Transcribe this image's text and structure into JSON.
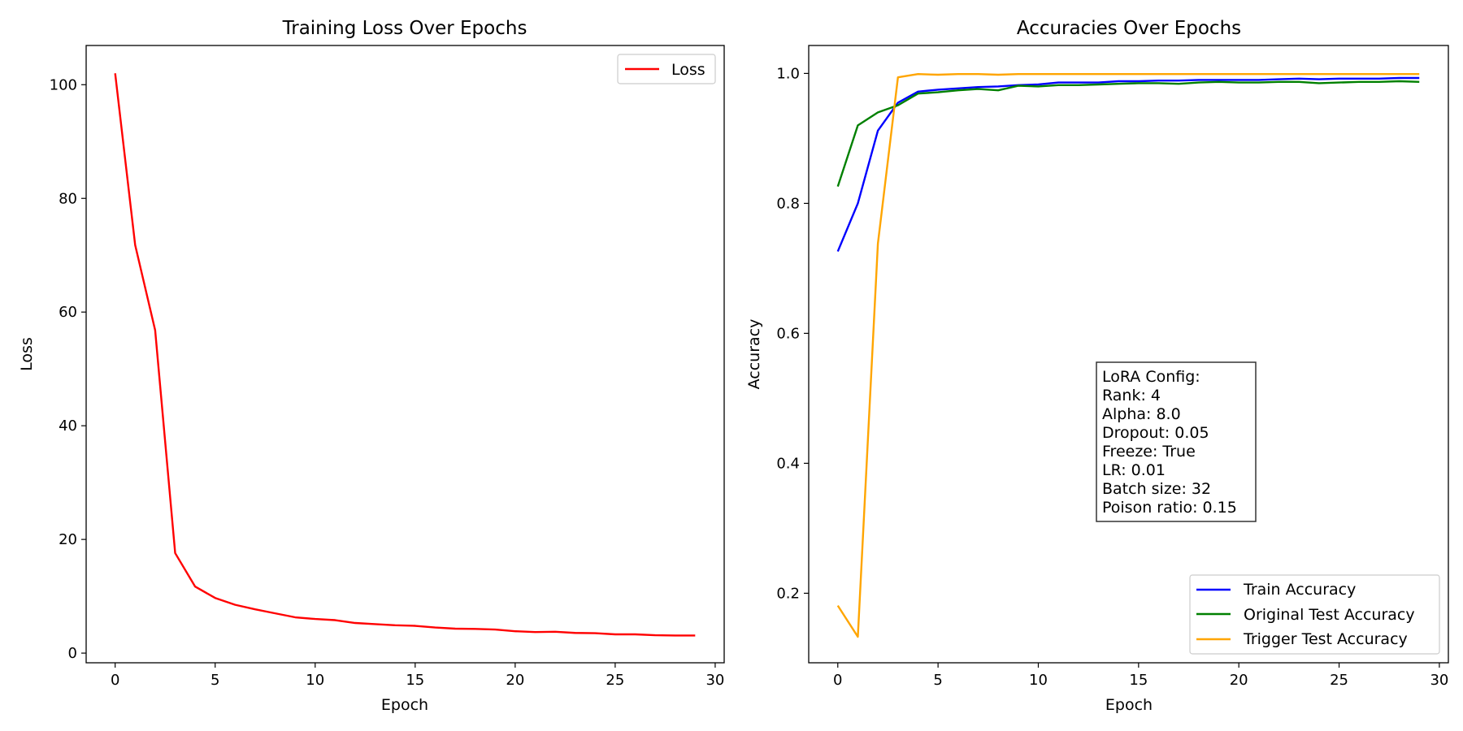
{
  "chart_data": [
    {
      "type": "line",
      "title": "Training Loss Over Epochs",
      "xlabel": "Epoch",
      "ylabel": "Loss",
      "xlim": [
        -1.45,
        30.45
      ],
      "ylim": [
        -1.7,
        106.9
      ],
      "xticks": [
        0,
        5,
        10,
        15,
        20,
        25,
        30
      ],
      "yticks": [
        0,
        20,
        40,
        60,
        80,
        100
      ],
      "grid": false,
      "legend": {
        "position": "upper right"
      },
      "x": [
        0,
        1,
        2,
        3,
        4,
        5,
        6,
        7,
        8,
        9,
        10,
        11,
        12,
        13,
        14,
        15,
        16,
        17,
        18,
        19,
        20,
        21,
        22,
        23,
        24,
        25,
        26,
        27,
        28,
        29
      ],
      "series": [
        {
          "name": "Loss",
          "color": "#ff0000",
          "values": [
            102.0,
            71.8,
            56.8,
            17.6,
            11.7,
            9.7,
            8.5,
            7.7,
            7.0,
            6.3,
            6.0,
            5.8,
            5.3,
            5.1,
            4.9,
            4.8,
            4.5,
            4.3,
            4.25,
            4.15,
            3.85,
            3.7,
            3.75,
            3.55,
            3.5,
            3.3,
            3.3,
            3.15,
            3.1,
            3.1
          ]
        }
      ]
    },
    {
      "type": "line",
      "title": "Accuracies Over Epochs",
      "xlabel": "Epoch",
      "ylabel": "Accuracy",
      "xlim": [
        -1.45,
        30.45
      ],
      "ylim": [
        0.093,
        1.043
      ],
      "xticks": [
        0,
        5,
        10,
        15,
        20,
        25,
        30
      ],
      "yticks": [
        0.2,
        0.4,
        0.6,
        0.8,
        1.0
      ],
      "ytick_labels": [
        "0.2",
        "0.4",
        "0.6",
        "0.8",
        "1.0"
      ],
      "grid": false,
      "legend": {
        "position": "lower right"
      },
      "x": [
        0,
        1,
        2,
        3,
        4,
        5,
        6,
        7,
        8,
        9,
        10,
        11,
        12,
        13,
        14,
        15,
        16,
        17,
        18,
        19,
        20,
        21,
        22,
        23,
        24,
        25,
        26,
        27,
        28,
        29
      ],
      "series": [
        {
          "name": "Train Accuracy",
          "color": "#0000ff",
          "values": [
            0.726,
            0.8,
            0.912,
            0.955,
            0.972,
            0.975,
            0.977,
            0.979,
            0.98,
            0.982,
            0.983,
            0.986,
            0.986,
            0.986,
            0.988,
            0.988,
            0.989,
            0.989,
            0.99,
            0.99,
            0.99,
            0.99,
            0.991,
            0.992,
            0.991,
            0.992,
            0.992,
            0.992,
            0.993,
            0.993
          ]
        },
        {
          "name": "Original Test Accuracy",
          "color": "#008000",
          "values": [
            0.826,
            0.92,
            0.94,
            0.951,
            0.969,
            0.971,
            0.974,
            0.976,
            0.974,
            0.981,
            0.98,
            0.982,
            0.982,
            0.983,
            0.984,
            0.985,
            0.985,
            0.984,
            0.986,
            0.987,
            0.986,
            0.986,
            0.987,
            0.987,
            0.985,
            0.986,
            0.987,
            0.987,
            0.988,
            0.987
          ]
        },
        {
          "name": "Trigger Test Accuracy",
          "color": "#ffa500",
          "values": [
            0.181,
            0.133,
            0.738,
            0.994,
            0.999,
            0.998,
            0.999,
            0.999,
            0.998,
            0.999,
            0.999,
            0.999,
            0.999,
            0.999,
            0.999,
            0.999,
            0.999,
            0.999,
            0.999,
            0.999,
            0.999,
            0.999,
            0.999,
            0.999,
            0.999,
            0.999,
            0.999,
            0.999,
            0.999,
            0.999
          ]
        }
      ],
      "annotation": {
        "lines": [
          "LoRA Config:",
          "Rank: 4",
          "Alpha: 8.0",
          "Dropout: 0.05",
          "Freeze: True",
          "LR: 0.01",
          "Batch size: 32",
          "Poison ratio: 0.15"
        ]
      }
    }
  ]
}
